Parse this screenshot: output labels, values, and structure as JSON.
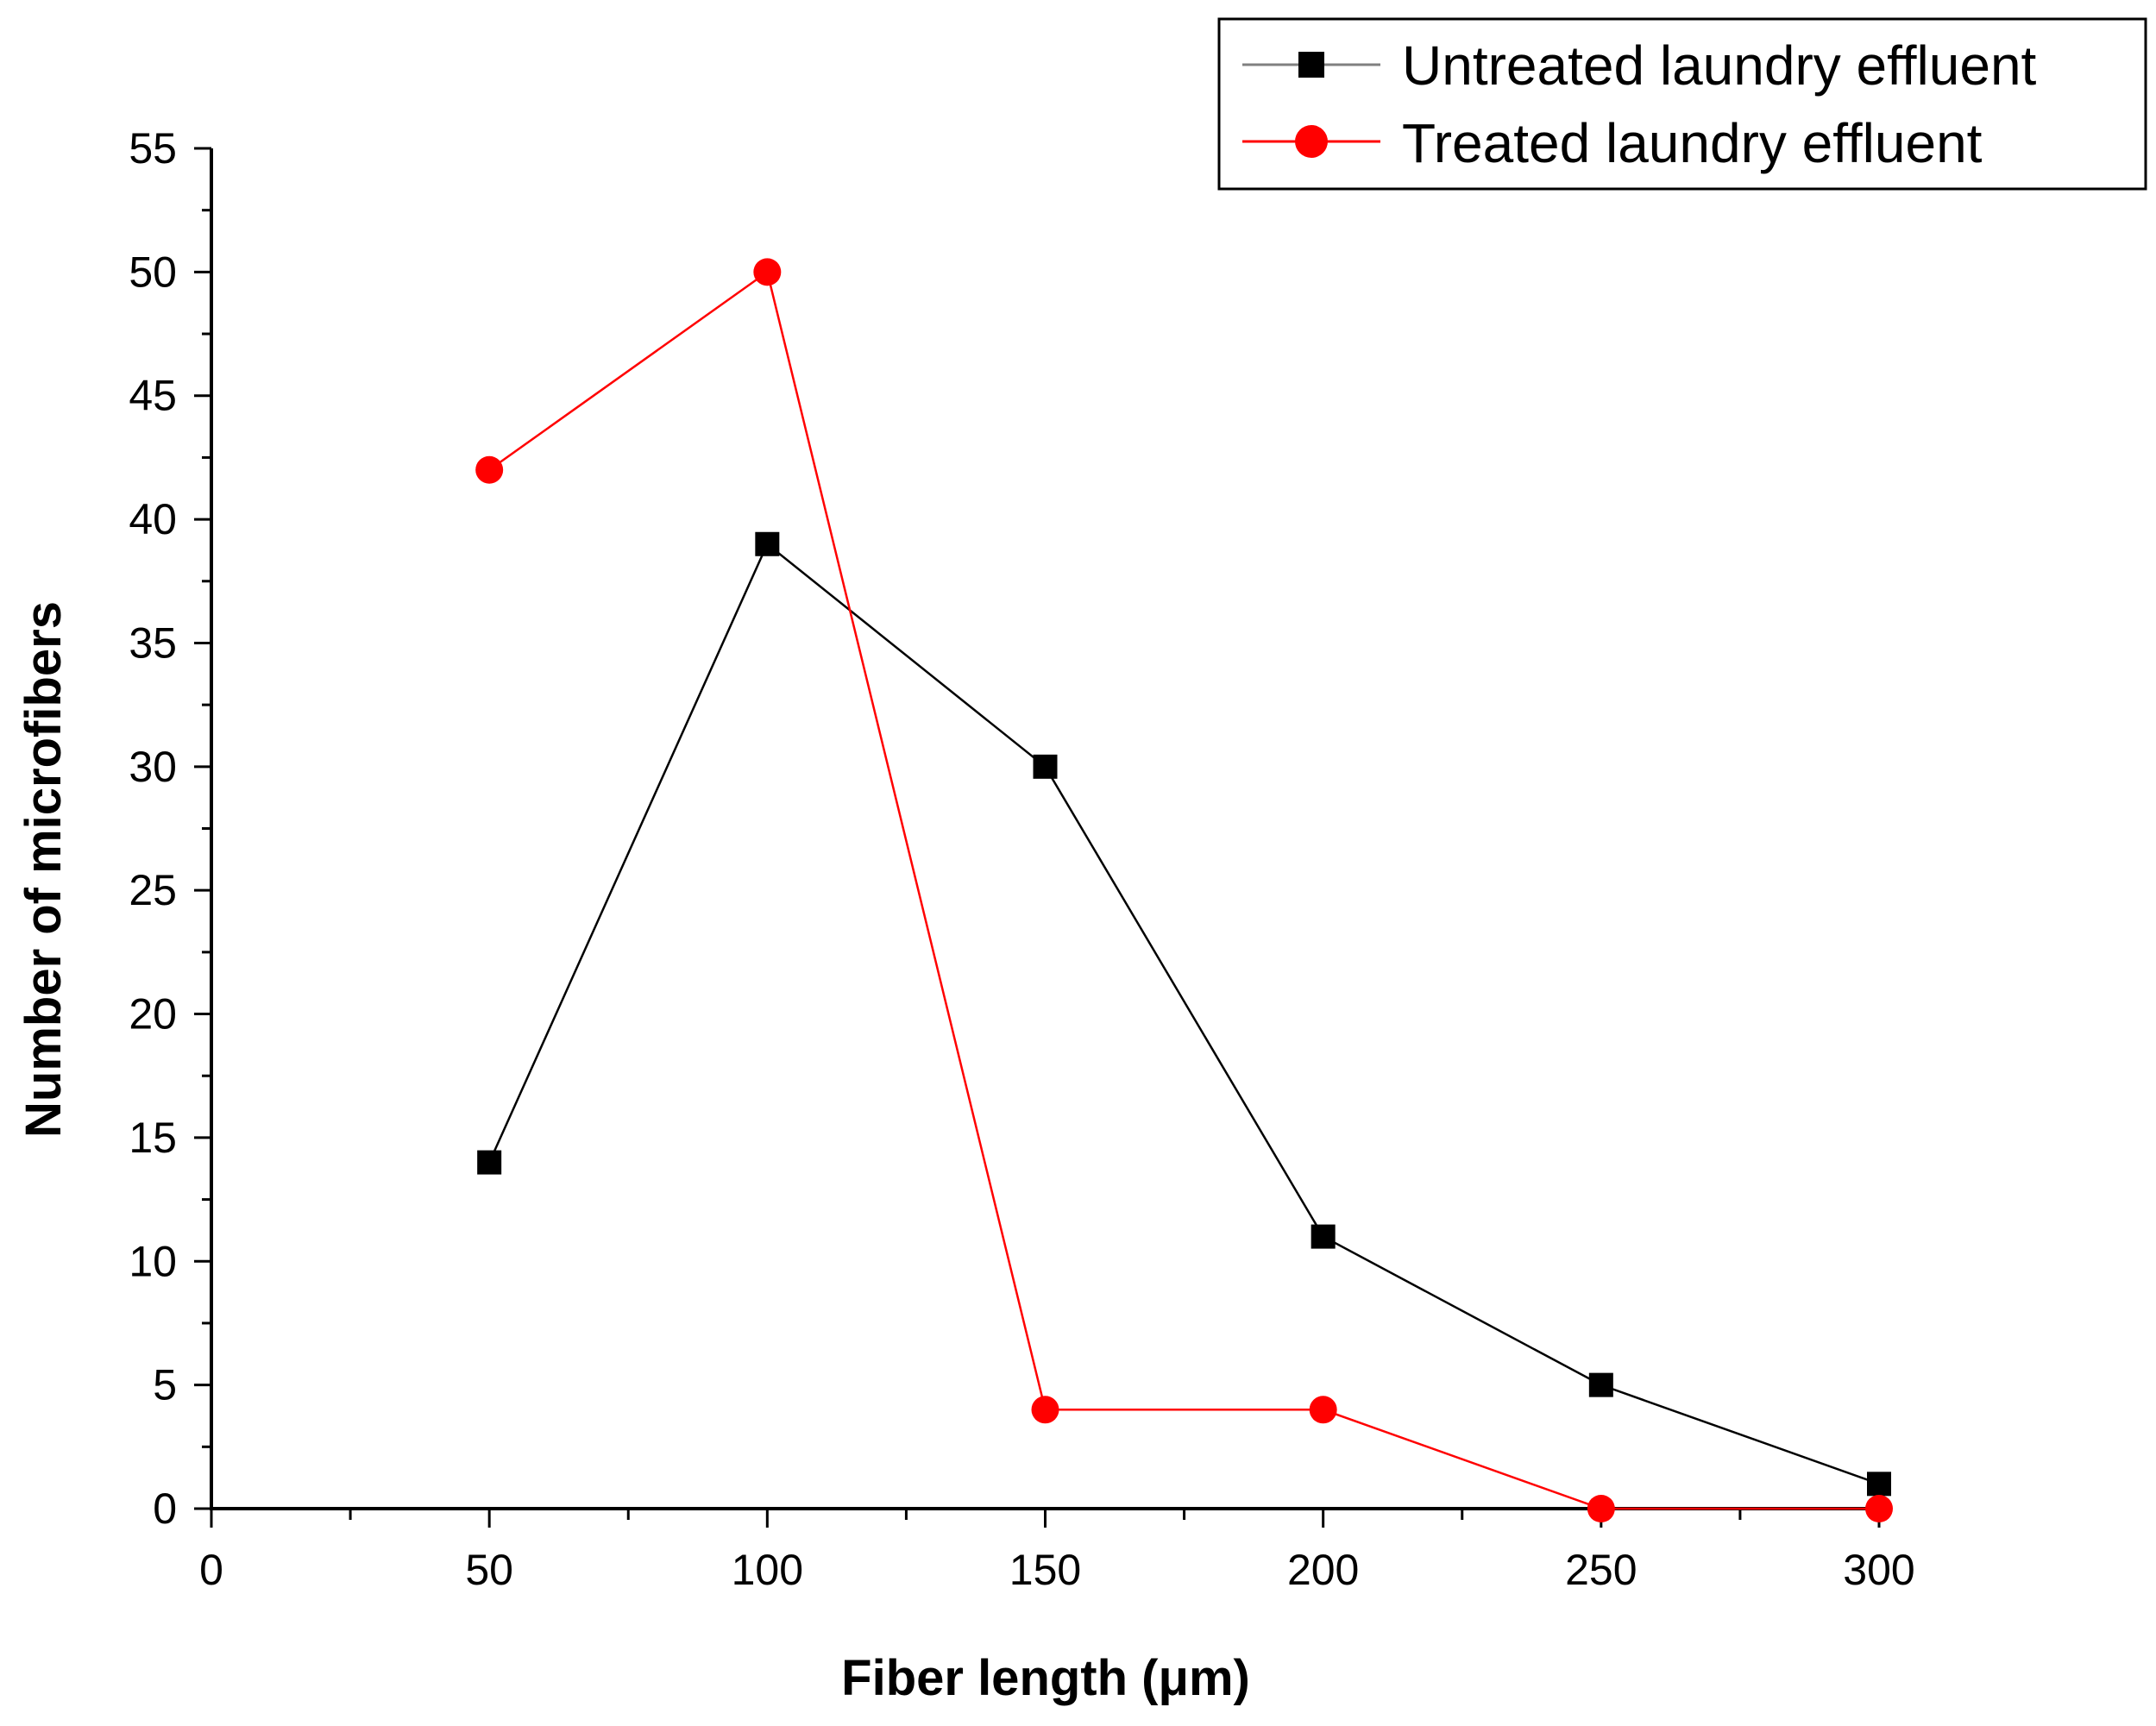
{
  "chart_data": {
    "type": "line",
    "title": "",
    "xlabel": "Fiber length (μm)",
    "ylabel": "Number of microfibers",
    "xlim": [
      0,
      300
    ],
    "ylim": [
      0,
      55
    ],
    "x_ticks": [
      0,
      50,
      100,
      150,
      200,
      250,
      300
    ],
    "y_ticks": [
      0,
      5,
      10,
      15,
      20,
      25,
      30,
      35,
      40,
      45,
      50,
      55
    ],
    "grid": false,
    "legend_position": "top-right",
    "series": [
      {
        "name": "Untreated laundry effluent",
        "color": "#000000",
        "marker": "square",
        "x": [
          50,
          100,
          150,
          200,
          250,
          300
        ],
        "y": [
          14,
          39,
          30,
          11,
          5,
          1
        ]
      },
      {
        "name": "Treated laundry effluent",
        "color": "#ff0000",
        "marker": "circle",
        "x": [
          50,
          100,
          150,
          200,
          250,
          300
        ],
        "y": [
          42,
          50,
          4,
          4,
          0,
          0
        ]
      }
    ]
  }
}
